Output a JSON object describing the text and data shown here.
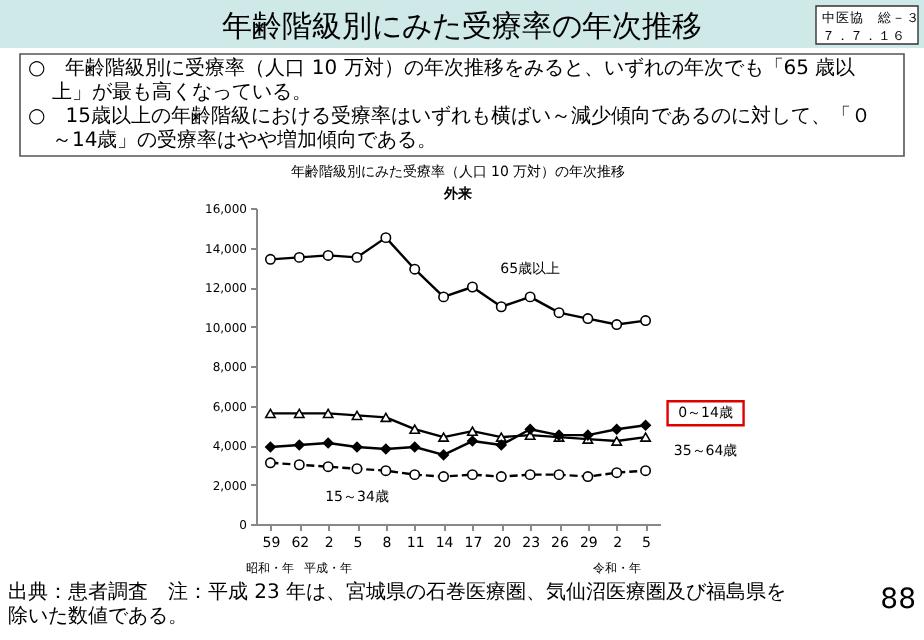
{
  "chart_data": {
    "type": "line",
    "title": "年齢階級別にみた受療率（人口 10 万対）の年次推移",
    "subtitle": "外来",
    "categories": [
      "59",
      "62",
      "2",
      "5",
      "8",
      "11",
      "14",
      "17",
      "20",
      "23",
      "26",
      "29",
      "2",
      "5"
    ],
    "series": [
      {
        "name": "65歳以上",
        "color": "#000000",
        "marker": "circle",
        "line_style": "solid",
        "values": [
          13400,
          13500,
          13600,
          13500,
          14500,
          12900,
          11500,
          12000,
          11000,
          11500,
          10700,
          10400,
          10100,
          10300
        ]
      },
      {
        "name": "35～64歳",
        "color": "#000000",
        "marker": "triangle",
        "line_style": "solid",
        "values": [
          5600,
          5600,
          5600,
          5500,
          5400,
          4800,
          4400,
          4700,
          4400,
          4500,
          4400,
          4300,
          4200,
          4400
        ]
      },
      {
        "name": "0～14歳",
        "color": "#000000",
        "marker": "diamond",
        "line_style": "solid",
        "values": [
          3900,
          4000,
          4100,
          3900,
          3800,
          3900,
          3500,
          4200,
          4000,
          4800,
          4500,
          4500,
          4800,
          5000
        ]
      },
      {
        "name": "15～34歳",
        "color": "#000000",
        "marker": "circle",
        "line_style": "dashed",
        "values": [
          3100,
          3000,
          2900,
          2800,
          2700,
          2500,
          2400,
          2500,
          2400,
          2500,
          2500,
          2400,
          2600,
          2700
        ]
      }
    ],
    "ylim": [
      0,
      16000
    ],
    "yticks": [
      0,
      {
        "value": 2000,
        "label": "2,000"
      },
      {
        "value": 4000,
        "label": "4,000"
      },
      {
        "value": 6000,
        "label": "6,000"
      },
      {
        "value": 8000,
        "label": "8,000"
      },
      {
        "value": 10000,
        "label": "10,000"
      },
      {
        "value": 12000,
        "label": "12,000"
      },
      {
        "value": 14000,
        "label": "14,000"
      },
      {
        "value": 16000,
        "label": "16,000"
      }
    ],
    "grid": false,
    "annotations": [
      "年齢階級別にみた受療率の年次推移",
      "中医協　総－３",
      "７．７．１６",
      "○　年齢階級別に受療率（人口 10 万対）の年次推移をみると、いずれの年次でも「65 歳以上」が最も高くなっている。",
      "○　15歳以上の年齢階級における受療率はいずれも横ばい～減少傾向であるのに対して、「０～14歳」の受療率はやや増加傾向である。",
      "昭和・年",
      "平成・年",
      "令和・年",
      "出典：患者調査　注：平成 23 年は、宮城県の石巻医療圏、気仙沼医療圏及び福島県を除いた数値である。",
      "88"
    ]
  }
}
